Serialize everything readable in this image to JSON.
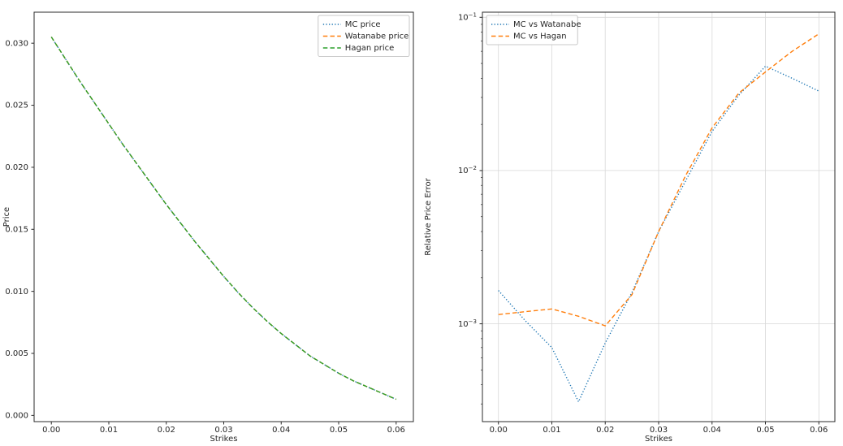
{
  "figure": {
    "background": "#ffffff"
  },
  "chart_data": [
    {
      "type": "line",
      "xlabel": "Strikes",
      "ylabel": "Price",
      "grid": false,
      "yscale": "linear",
      "legend_position": "upper-right",
      "xlim": [
        -0.003,
        0.063
      ],
      "ylim": [
        -0.0005,
        0.0325
      ],
      "xticks": [
        0.0,
        0.01,
        0.02,
        0.03,
        0.04,
        0.05,
        0.06
      ],
      "xtick_labels": [
        "0.00",
        "0.01",
        "0.02",
        "0.03",
        "0.04",
        "0.05",
        "0.06"
      ],
      "yticks": [
        0.0,
        0.005,
        0.01,
        0.015,
        0.02,
        0.025,
        0.03
      ],
      "ytick_labels": [
        "0.000",
        "0.005",
        "0.010",
        "0.015",
        "0.020",
        "0.025",
        "0.030"
      ],
      "x": [
        0.0,
        0.0025,
        0.005,
        0.0075,
        0.01,
        0.0125,
        0.015,
        0.0175,
        0.02,
        0.0225,
        0.025,
        0.0275,
        0.03,
        0.0325,
        0.035,
        0.0375,
        0.04,
        0.0425,
        0.045,
        0.0475,
        0.05,
        0.0525,
        0.055,
        0.0575,
        0.06
      ],
      "series": [
        {
          "name": "MC price",
          "color": "#1f77b4",
          "style": "dotted",
          "values": [
            0.0305,
            0.0287,
            0.0269,
            0.0252,
            0.0235,
            0.0218,
            0.0202,
            0.0186,
            0.017,
            0.0155,
            0.014,
            0.0126,
            0.0112,
            0.0099,
            0.0087,
            0.0076,
            0.0066,
            0.0057,
            0.0048,
            0.0041,
            0.0034,
            0.0028,
            0.0023,
            0.0018,
            0.0013
          ]
        },
        {
          "name": "Watanabe price",
          "color": "#ff7f0e",
          "style": "dashed",
          "values": [
            0.0305,
            0.0287,
            0.0269,
            0.0252,
            0.0235,
            0.0218,
            0.0202,
            0.0186,
            0.017,
            0.0155,
            0.014,
            0.0126,
            0.0112,
            0.0099,
            0.0087,
            0.0076,
            0.0066,
            0.0057,
            0.0048,
            0.0041,
            0.0034,
            0.0028,
            0.0023,
            0.0018,
            0.0013
          ]
        },
        {
          "name": "Hagan price",
          "color": "#2ca02c",
          "style": "dashed",
          "values": [
            0.0305,
            0.0287,
            0.0269,
            0.0252,
            0.0235,
            0.0218,
            0.0202,
            0.0186,
            0.017,
            0.0155,
            0.014,
            0.0126,
            0.0112,
            0.0099,
            0.0087,
            0.0076,
            0.0066,
            0.0057,
            0.0048,
            0.0041,
            0.0034,
            0.0028,
            0.0023,
            0.0018,
            0.0013
          ]
        }
      ]
    },
    {
      "type": "line",
      "xlabel": "Strikes",
      "ylabel": "Relative Price Error",
      "grid": true,
      "yscale": "log",
      "legend_position": "upper-left",
      "xlim": [
        -0.003,
        0.063
      ],
      "ylim": [
        0.00023,
        0.108
      ],
      "xticks": [
        0.0,
        0.01,
        0.02,
        0.03,
        0.04,
        0.05,
        0.06
      ],
      "xtick_labels": [
        "0.00",
        "0.01",
        "0.02",
        "0.03",
        "0.04",
        "0.05",
        "0.06"
      ],
      "yticks": [
        0.1,
        0.01,
        0.001
      ],
      "ytick_exponents": [
        "−1",
        "−2",
        "−3"
      ],
      "x": [
        0.0,
        0.005,
        0.01,
        0.015,
        0.02,
        0.025,
        0.03,
        0.035,
        0.04,
        0.045,
        0.05,
        0.055,
        0.06
      ],
      "series": [
        {
          "name": "MC vs Watanabe",
          "color": "#1f77b4",
          "style": "dotted",
          "values": [
            0.00165,
            0.00105,
            0.0007,
            0.00031,
            0.00075,
            0.0016,
            0.004,
            0.0085,
            0.018,
            0.031,
            0.048,
            0.04,
            0.033
          ]
        },
        {
          "name": "MC vs Hagan",
          "color": "#ff7f0e",
          "style": "dashed",
          "values": [
            0.00115,
            0.0012,
            0.00125,
            0.00112,
            0.00097,
            0.00155,
            0.004,
            0.0092,
            0.019,
            0.032,
            0.044,
            0.06,
            0.078
          ]
        }
      ]
    }
  ]
}
